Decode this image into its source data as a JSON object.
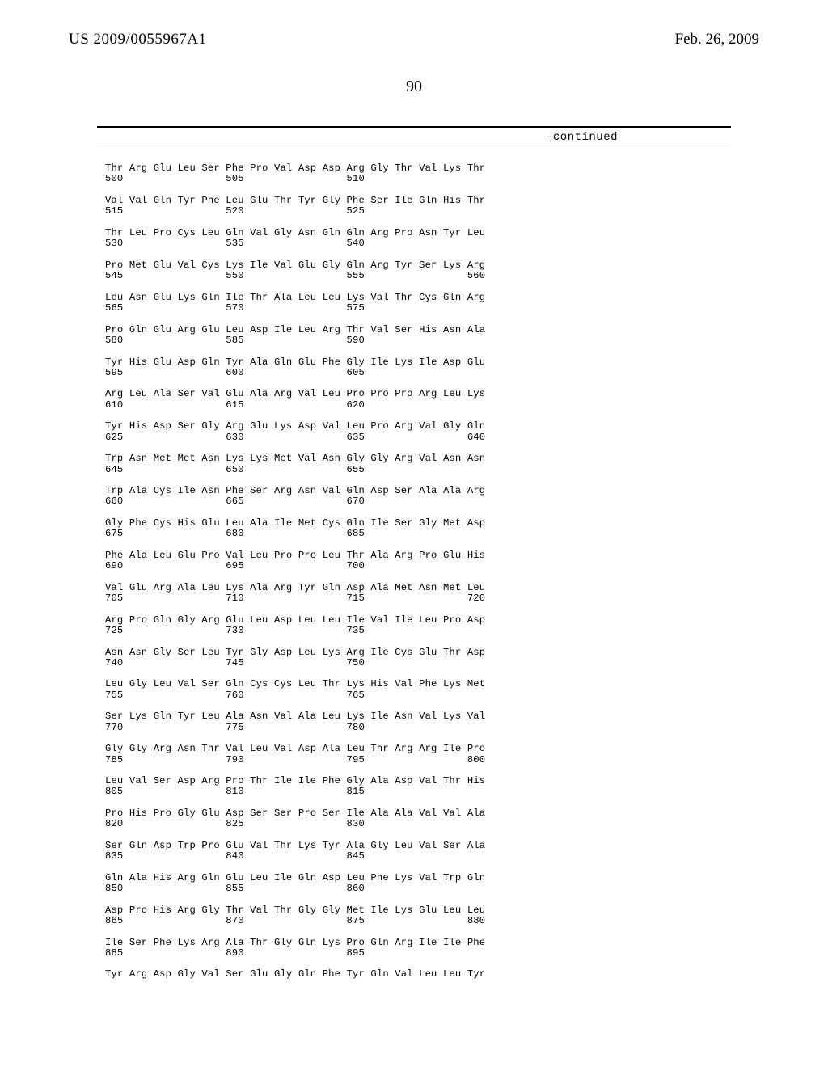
{
  "header": {
    "pub_number": "US 2009/0055967A1",
    "pub_date": "Feb. 26, 2009"
  },
  "page_number": "90",
  "continued_label": "-continued",
  "sequence_lines": [
    "Thr Arg Glu Leu Ser Phe Pro Val Asp Asp Arg Gly Thr Val Lys Thr",
    "500                 505                 510",
    "",
    "Val Val Gln Tyr Phe Leu Glu Thr Tyr Gly Phe Ser Ile Gln His Thr",
    "515                 520                 525",
    "",
    "Thr Leu Pro Cys Leu Gln Val Gly Asn Gln Gln Arg Pro Asn Tyr Leu",
    "530                 535                 540",
    "",
    "Pro Met Glu Val Cys Lys Ile Val Glu Gly Gln Arg Tyr Ser Lys Arg",
    "545                 550                 555                 560",
    "",
    "Leu Asn Glu Lys Gln Ile Thr Ala Leu Leu Lys Val Thr Cys Gln Arg",
    "565                 570                 575",
    "",
    "Pro Gln Glu Arg Glu Leu Asp Ile Leu Arg Thr Val Ser His Asn Ala",
    "580                 585                 590",
    "",
    "Tyr His Glu Asp Gln Tyr Ala Gln Glu Phe Gly Ile Lys Ile Asp Glu",
    "595                 600                 605",
    "",
    "Arg Leu Ala Ser Val Glu Ala Arg Val Leu Pro Pro Pro Arg Leu Lys",
    "610                 615                 620",
    "",
    "Tyr His Asp Ser Gly Arg Glu Lys Asp Val Leu Pro Arg Val Gly Gln",
    "625                 630                 635                 640",
    "",
    "Trp Asn Met Met Asn Lys Lys Met Val Asn Gly Gly Arg Val Asn Asn",
    "645                 650                 655",
    "",
    "Trp Ala Cys Ile Asn Phe Ser Arg Asn Val Gln Asp Ser Ala Ala Arg",
    "660                 665                 670",
    "",
    "Gly Phe Cys His Glu Leu Ala Ile Met Cys Gln Ile Ser Gly Met Asp",
    "675                 680                 685",
    "",
    "Phe Ala Leu Glu Pro Val Leu Pro Pro Leu Thr Ala Arg Pro Glu His",
    "690                 695                 700",
    "",
    "Val Glu Arg Ala Leu Lys Ala Arg Tyr Gln Asp Ala Met Asn Met Leu",
    "705                 710                 715                 720",
    "",
    "Arg Pro Gln Gly Arg Glu Leu Asp Leu Leu Ile Val Ile Leu Pro Asp",
    "725                 730                 735",
    "",
    "Asn Asn Gly Ser Leu Tyr Gly Asp Leu Lys Arg Ile Cys Glu Thr Asp",
    "740                 745                 750",
    "",
    "Leu Gly Leu Val Ser Gln Cys Cys Leu Thr Lys His Val Phe Lys Met",
    "755                 760                 765",
    "",
    "Ser Lys Gln Tyr Leu Ala Asn Val Ala Leu Lys Ile Asn Val Lys Val",
    "770                 775                 780",
    "",
    "Gly Gly Arg Asn Thr Val Leu Val Asp Ala Leu Thr Arg Arg Ile Pro",
    "785                 790                 795                 800",
    "",
    "Leu Val Ser Asp Arg Pro Thr Ile Ile Phe Gly Ala Asp Val Thr His",
    "805                 810                 815",
    "",
    "Pro His Pro Gly Glu Asp Ser Ser Pro Ser Ile Ala Ala Val Val Ala",
    "820                 825                 830",
    "",
    "Ser Gln Asp Trp Pro Glu Val Thr Lys Tyr Ala Gly Leu Val Ser Ala",
    "835                 840                 845",
    "",
    "Gln Ala His Arg Gln Glu Leu Ile Gln Asp Leu Phe Lys Val Trp Gln",
    "850                 855                 860",
    "",
    "Asp Pro His Arg Gly Thr Val Thr Gly Gly Met Ile Lys Glu Leu Leu",
    "865                 870                 875                 880",
    "",
    "Ile Ser Phe Lys Arg Ala Thr Gly Gln Lys Pro Gln Arg Ile Ile Phe",
    "885                 890                 895",
    "",
    "Tyr Arg Asp Gly Val Ser Glu Gly Gln Phe Tyr Gln Val Leu Leu Tyr"
  ]
}
